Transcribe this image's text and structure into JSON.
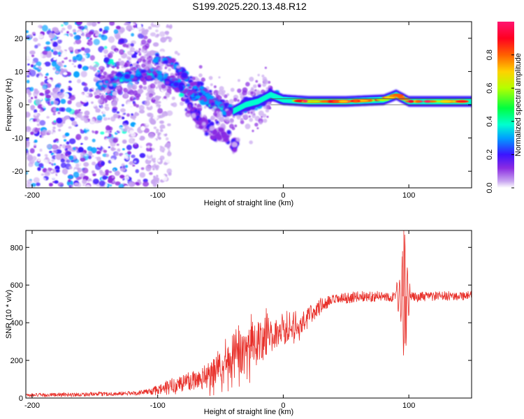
{
  "figure": {
    "title": "S199.2025.220.13.48.R12"
  },
  "chart_data": [
    {
      "type": "heatmap",
      "title": "S199.2025.220.13.48.R12",
      "xlabel": "Height of straight line (km)",
      "ylabel": "Frequency (Hz)",
      "xlim": [
        -205,
        150
      ],
      "ylim": [
        -25,
        25
      ],
      "xticks": [
        -200,
        -100,
        0,
        100
      ],
      "yticks": [
        -20,
        -10,
        0,
        10,
        20
      ],
      "colorbar": {
        "label": "Normalized spectral amplitude",
        "range": [
          0.0,
          1.0
        ],
        "ticks": [
          0.0,
          0.2,
          0.4,
          0.6,
          0.8
        ],
        "colormap": [
          "#ffffff",
          "#c8a6f0",
          "#8a2be2",
          "#3b14ff",
          "#00a0ff",
          "#00ffd0",
          "#00ff40",
          "#b4ff00",
          "#ffd200",
          "#ff6000",
          "#ff0020",
          "#ff1470"
        ]
      },
      "features": {
        "scatter_region_x": [
          -205,
          -100
        ],
        "ridge": [
          [
            -145,
            6
          ],
          [
            -130,
            8
          ],
          [
            -115,
            9
          ],
          [
            -100,
            9
          ],
          [
            -90,
            7
          ],
          [
            -80,
            5
          ],
          [
            -70,
            3
          ],
          [
            -60,
            1
          ],
          [
            -50,
            -1
          ],
          [
            -40,
            -2
          ],
          [
            -30,
            0
          ],
          [
            -20,
            1
          ],
          [
            -10,
            3
          ],
          [
            0,
            1.5
          ],
          [
            20,
            1
          ],
          [
            50,
            1
          ],
          [
            80,
            1.5
          ],
          [
            90,
            3
          ],
          [
            100,
            1
          ],
          [
            150,
            1
          ]
        ],
        "secondary_arc": [
          [
            -100,
            14
          ],
          [
            -90,
            13
          ],
          [
            -80,
            9
          ],
          [
            -70,
            6
          ],
          [
            -60,
            3
          ],
          [
            -50,
            0
          ]
        ],
        "lower_tail": [
          [
            -75,
            -1
          ],
          [
            -65,
            -5
          ],
          [
            -55,
            -8
          ],
          [
            -45,
            -10
          ],
          [
            -40,
            -12
          ]
        ],
        "peak_band_x": [
          10,
          150
        ],
        "peak_band_y": [
          0,
          2
        ]
      }
    },
    {
      "type": "line",
      "xlabel": "Height of straight line (km)",
      "ylabel": "SNR (10 * v/v)",
      "xlim": [
        -205,
        150
      ],
      "ylim": [
        0,
        890
      ],
      "xticks": [
        -200,
        -100,
        0,
        100
      ],
      "yticks": [
        0,
        200,
        400,
        600,
        800
      ],
      "color": "#e8302a",
      "baseline": [
        [
          -205,
          15
        ],
        [
          -150,
          20
        ],
        [
          -120,
          25
        ],
        [
          -100,
          40
        ],
        [
          -80,
          80
        ],
        [
          -60,
          120
        ],
        [
          -50,
          150
        ],
        [
          -40,
          200
        ],
        [
          -30,
          250
        ],
        [
          -20,
          300
        ],
        [
          -10,
          340
        ],
        [
          0,
          360
        ],
        [
          10,
          380
        ],
        [
          20,
          430
        ],
        [
          30,
          490
        ],
        [
          40,
          520
        ],
        [
          50,
          530
        ],
        [
          60,
          540
        ],
        [
          80,
          540
        ],
        [
          100,
          535
        ],
        [
          120,
          540
        ],
        [
          150,
          545
        ]
      ],
      "noise": [
        [
          -205,
          10
        ],
        [
          -110,
          12
        ],
        [
          -90,
          45
        ],
        [
          -60,
          70
        ],
        [
          -40,
          100
        ],
        [
          -30,
          120
        ],
        [
          -20,
          110
        ],
        [
          0,
          80
        ],
        [
          20,
          60
        ],
        [
          40,
          30
        ],
        [
          150,
          25
        ]
      ],
      "spikes": [
        {
          "x": 96,
          "y": 890
        },
        {
          "x": 97,
          "y": 290
        },
        {
          "x": 95,
          "y": 780
        },
        {
          "x": 98,
          "y": 330
        }
      ]
    }
  ]
}
